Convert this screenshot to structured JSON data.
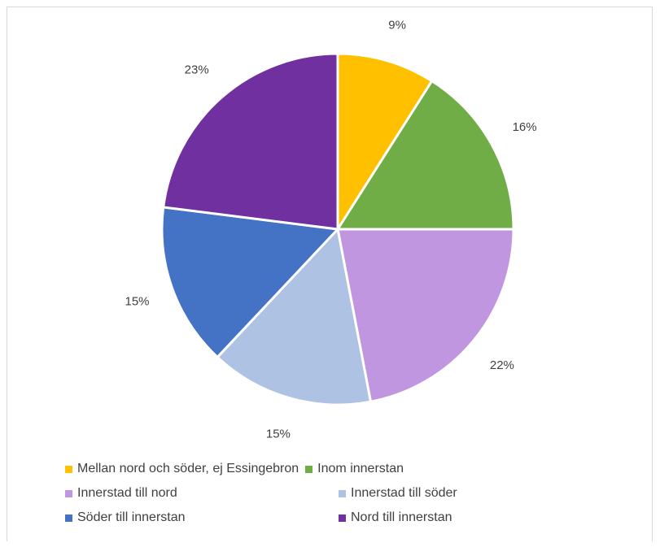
{
  "chart_data": {
    "type": "pie",
    "title": "",
    "slices": [
      {
        "label": "Mellan nord och söder, ej Essingebron",
        "value": 9,
        "value_label": "9%",
        "color": "#FFC000"
      },
      {
        "label": "Inom innerstan",
        "value": 16,
        "value_label": "16%",
        "color": "#70AD47"
      },
      {
        "label": "Innerstad till nord",
        "value": 22,
        "value_label": "22%",
        "color": "#C096E0"
      },
      {
        "label": "Innerstad till söder",
        "value": 15,
        "value_label": "15%",
        "color": "#AEC2E4"
      },
      {
        "label": "Söder till innerstan",
        "value": 15,
        "value_label": "15%",
        "color": "#4472C4"
      },
      {
        "label": "Nord till innerstan",
        "value": 23,
        "value_label": "23%",
        "color": "#7030A0"
      }
    ],
    "legend_position": "bottom",
    "start_angle": "12 o'clock",
    "direction": "clockwise"
  }
}
